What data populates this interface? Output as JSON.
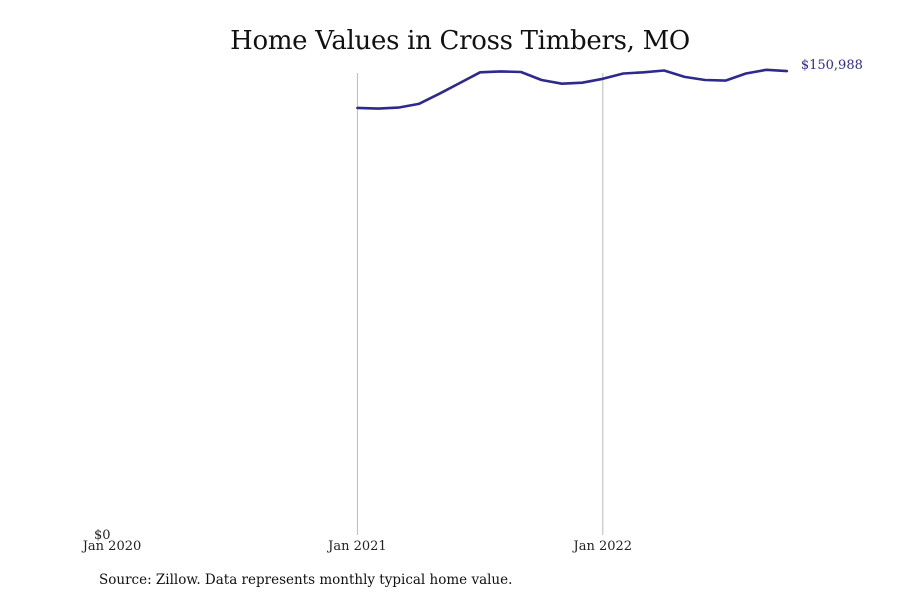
{
  "chart_data": {
    "type": "line",
    "title": "Home Values in Cross Timbers, MO",
    "xlabel": "",
    "ylabel": "",
    "x_ticks": [
      "Jan 2020",
      "Jan 2021",
      "Jan 2022"
    ],
    "y_ticks": [
      "$0"
    ],
    "ylim": [
      0,
      152000
    ],
    "xlim": [
      "2020-01",
      "2022-11"
    ],
    "grid": "vertical lines at year ticks",
    "legend": "none",
    "colors": {
      "line": "#2e2a8c",
      "grid": "#bbbbbb"
    },
    "series": [
      {
        "x": [
          "2021-01",
          "2021-02",
          "2021-03",
          "2021-04",
          "2021-05",
          "2021-06",
          "2021-07",
          "2021-08",
          "2021-09",
          "2021-10",
          "2021-11",
          "2021-12",
          "2022-01",
          "2022-02",
          "2022-03",
          "2022-04",
          "2022-05",
          "2022-06",
          "2022-07",
          "2022-08",
          "2022-09",
          "2022-10"
        ],
        "values": [
          139000,
          138800,
          139100,
          140300,
          143600,
          147100,
          150600,
          150900,
          150700,
          148100,
          146900,
          147200,
          148500,
          150200,
          150600,
          151200,
          149100,
          148100,
          147900,
          150200,
          151400,
          150988
        ]
      }
    ],
    "end_label": "$150,988"
  },
  "footer": {
    "source": "Source: Zillow. Data represents monthly typical home value."
  }
}
